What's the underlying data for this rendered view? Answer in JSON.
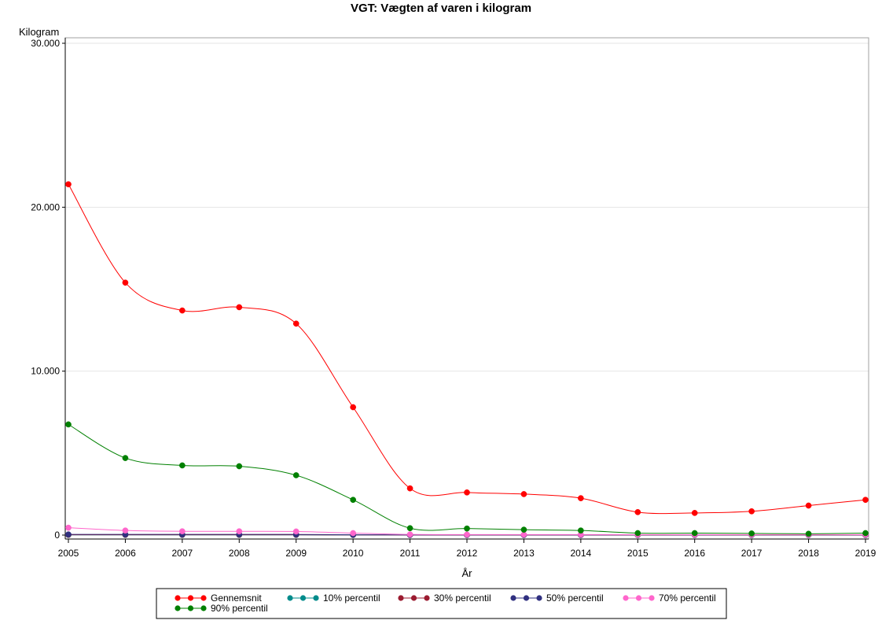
{
  "chart_data": {
    "type": "line",
    "title": "VGT: Vægten af varen i kilogram",
    "xlabel": "År",
    "ylabel": "Kilogram",
    "x": [
      2005,
      2006,
      2007,
      2008,
      2009,
      2010,
      2011,
      2012,
      2013,
      2014,
      2015,
      2016,
      2017,
      2018,
      2019
    ],
    "x_tick_labels": [
      "2005",
      "2006",
      "2007",
      "2008",
      "2009",
      "2010",
      "2011",
      "2012",
      "2013",
      "2014",
      "2015",
      "2016",
      "2017",
      "2018",
      "2019"
    ],
    "ylim": [
      0,
      30000
    ],
    "y_ticks": [
      0,
      10000,
      20000,
      30000
    ],
    "y_tick_labels": [
      "0",
      "10.000",
      "20.000",
      "30.000"
    ],
    "grid": "horizontal",
    "legend_position": "bottom",
    "series": [
      {
        "name": "Gennemsnit",
        "color": "#ff0000",
        "values": [
          21400,
          15400,
          13700,
          13900,
          12900,
          7800,
          2850,
          2600,
          2500,
          2250,
          1400,
          1350,
          1450,
          1800,
          2150
        ]
      },
      {
        "name": "10% percentil",
        "color": "#008b8b",
        "values": [
          10,
          10,
          10,
          10,
          10,
          5,
          3,
          3,
          3,
          3,
          3,
          3,
          3,
          3,
          3
        ]
      },
      {
        "name": "30% percentil",
        "color": "#9b1b30",
        "values": [
          20,
          20,
          20,
          20,
          20,
          10,
          5,
          5,
          5,
          5,
          5,
          5,
          5,
          5,
          5
        ]
      },
      {
        "name": "50% percentil",
        "color": "#303080",
        "values": [
          40,
          40,
          40,
          40,
          40,
          20,
          10,
          10,
          10,
          10,
          10,
          10,
          10,
          10,
          10
        ]
      },
      {
        "name": "70% percentil",
        "color": "#ff66cc",
        "values": [
          450,
          280,
          230,
          230,
          220,
          120,
          40,
          30,
          30,
          30,
          25,
          25,
          25,
          25,
          25
        ]
      },
      {
        "name": "90% percentil",
        "color": "#008000",
        "values": [
          6750,
          4700,
          4250,
          4200,
          3650,
          2150,
          420,
          400,
          330,
          280,
          120,
          120,
          100,
          80,
          120
        ]
      }
    ]
  }
}
